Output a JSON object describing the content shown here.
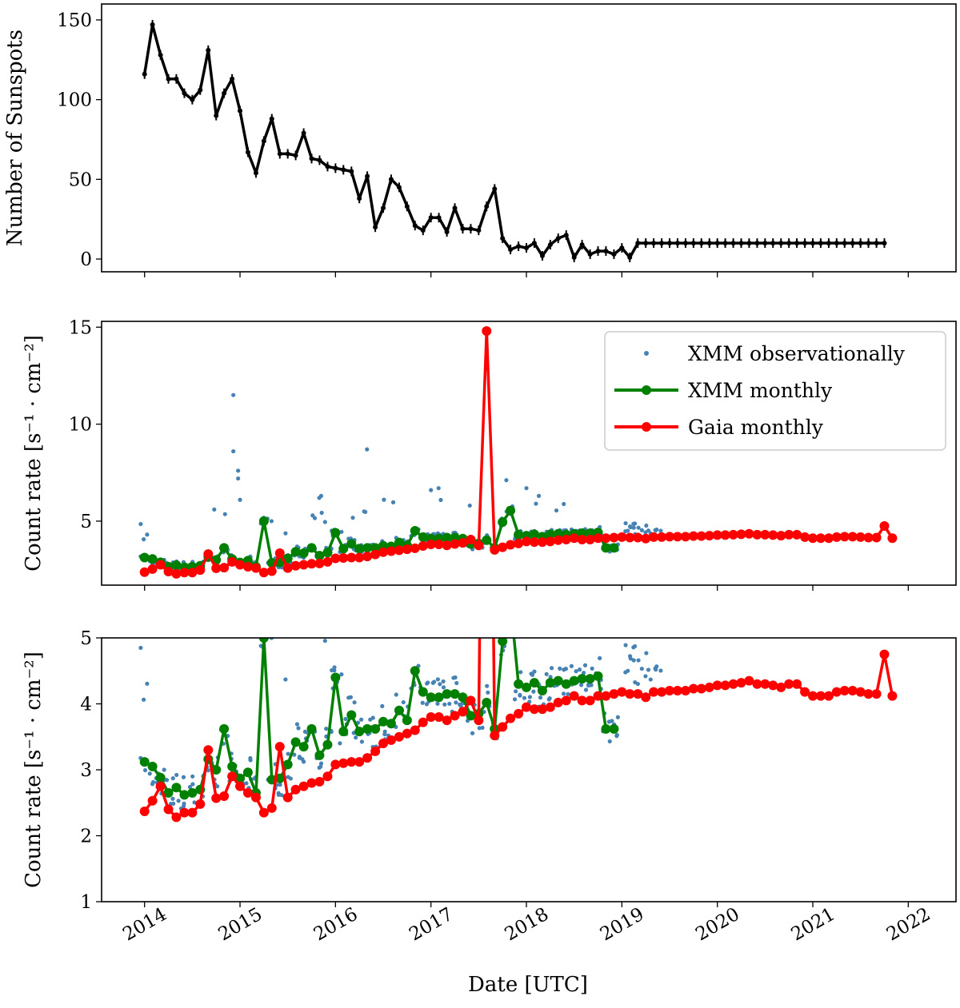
{
  "chart_data": [
    {
      "id": "sunspots",
      "type": "line",
      "ylabel": "Number of Sunspots",
      "ylim": [
        -8,
        160
      ],
      "yticks": [
        0,
        50,
        100,
        150
      ],
      "xlim": [
        2013.55,
        2022.5
      ],
      "series": [
        {
          "name": "Sunspots",
          "color": "#000000",
          "x": [
            2014.0,
            2014.083,
            2014.167,
            2014.25,
            2014.333,
            2014.417,
            2014.5,
            2014.583,
            2014.667,
            2014.75,
            2014.833,
            2014.917,
            2015.0,
            2015.083,
            2015.167,
            2015.25,
            2015.333,
            2015.417,
            2015.5,
            2015.583,
            2015.667,
            2015.75,
            2015.833,
            2015.917,
            2016.0,
            2016.083,
            2016.167,
            2016.25,
            2016.333,
            2016.417,
            2016.5,
            2016.583,
            2016.667,
            2016.75,
            2016.833,
            2016.917,
            2017.0,
            2017.083,
            2017.167,
            2017.25,
            2017.333,
            2017.417,
            2017.5,
            2017.583,
            2017.667,
            2017.75,
            2017.833,
            2017.917,
            2018.0,
            2018.083,
            2018.167,
            2018.25,
            2018.333,
            2018.417,
            2018.5,
            2018.583,
            2018.667,
            2018.75,
            2018.833,
            2018.917,
            2019.0,
            2019.083,
            2019.167,
            2019.25,
            2019.333,
            2019.417,
            2019.5,
            2019.583,
            2019.667,
            2019.75,
            2019.833,
            2019.917,
            2020.0,
            2020.083,
            2020.167,
            2020.25,
            2020.333,
            2020.417,
            2020.5,
            2020.583,
            2020.667,
            2020.75,
            2020.833,
            2020.917,
            2021.0,
            2021.083,
            2021.167,
            2021.25,
            2021.333,
            2021.417,
            2021.5,
            2021.583,
            2021.667,
            2021.75,
            2021.833
          ],
          "y": [
            116,
            147,
            128,
            113,
            113,
            104,
            100,
            106,
            131,
            90,
            104,
            113,
            93,
            67,
            54,
            74,
            88,
            66,
            66,
            65,
            79,
            63,
            62,
            58,
            57,
            56,
            55,
            38,
            52,
            20,
            32,
            50,
            45,
            33,
            21,
            18,
            26,
            26,
            17,
            32,
            19,
            19,
            18,
            33,
            44,
            13,
            6,
            8,
            7,
            10,
            2,
            9,
            13,
            15,
            1,
            9,
            3,
            5,
            5,
            3,
            7,
            1,
            10,
            10,
            10,
            10,
            10,
            10,
            10,
            10,
            10,
            10,
            10,
            10,
            10,
            10,
            10,
            10,
            10,
            10,
            10,
            10,
            10,
            10,
            10,
            10,
            10,
            10,
            10,
            10,
            10,
            10,
            10,
            10,
            10
          ]
        }
      ]
    },
    {
      "id": "count-rate-full",
      "type": "line",
      "ylabel": "Count rate [s⁻¹ · cm⁻²]",
      "ylim": [
        1.7,
        15.3
      ],
      "yticks": [
        5,
        10,
        15
      ],
      "xlim": [
        2013.55,
        2022.5
      ],
      "legend": {
        "position": "top-right",
        "entries": [
          "XMM observationally",
          "XMM monthly",
          "Gaia monthly"
        ]
      }
    },
    {
      "id": "count-rate-zoom",
      "type": "line",
      "ylabel": "Count rate [s⁻¹ · cm⁻²]",
      "ylim": [
        1,
        5
      ],
      "yticks": [
        1,
        2,
        3,
        4,
        5
      ],
      "xlim": [
        2013.55,
        2022.5
      ],
      "xlabel": "Date [UTC]",
      "xticks": [
        2014,
        2015,
        2016,
        2017,
        2018,
        2019,
        2020,
        2021,
        2022
      ]
    }
  ],
  "series": {
    "xmm_monthly": {
      "name": "XMM monthly",
      "color": "#008000",
      "x": [
        2014.0,
        2014.083,
        2014.167,
        2014.25,
        2014.333,
        2014.417,
        2014.5,
        2014.583,
        2014.667,
        2014.75,
        2014.833,
        2014.917,
        2015.0,
        2015.083,
        2015.167,
        2015.25,
        2015.333,
        2015.417,
        2015.5,
        2015.583,
        2015.667,
        2015.75,
        2015.833,
        2015.917,
        2016.0,
        2016.083,
        2016.167,
        2016.25,
        2016.333,
        2016.417,
        2016.5,
        2016.583,
        2016.667,
        2016.75,
        2016.833,
        2016.917,
        2017.0,
        2017.083,
        2017.167,
        2017.25,
        2017.333,
        2017.417,
        2017.5,
        2017.583,
        2017.667,
        2017.75,
        2017.833,
        2017.917,
        2018.0,
        2018.083,
        2018.167,
        2018.25,
        2018.333,
        2018.417,
        2018.5,
        2018.583,
        2018.667,
        2018.75,
        2018.833,
        2018.917
      ],
      "y": [
        3.12,
        3.05,
        2.88,
        2.65,
        2.73,
        2.62,
        2.65,
        2.7,
        3.16,
        3.0,
        3.62,
        3.05,
        2.87,
        2.96,
        2.65,
        5.0,
        2.85,
        2.87,
        3.08,
        3.42,
        3.35,
        3.62,
        3.22,
        3.38,
        4.4,
        3.58,
        3.83,
        3.58,
        3.62,
        3.62,
        3.73,
        3.7,
        3.9,
        3.75,
        4.5,
        4.18,
        4.1,
        4.1,
        4.15,
        4.15,
        4.1,
        3.82,
        3.85,
        4.02,
        3.62,
        4.95,
        5.55,
        4.3,
        4.25,
        4.32,
        4.2,
        4.32,
        4.35,
        4.3,
        4.35,
        4.38,
        4.38,
        4.42,
        3.62,
        3.62
      ]
    },
    "gaia_monthly": {
      "name": "Gaia monthly",
      "color": "#ff0000",
      "x": [
        2014.0,
        2014.083,
        2014.167,
        2014.25,
        2014.333,
        2014.417,
        2014.5,
        2014.583,
        2014.667,
        2014.75,
        2014.833,
        2014.917,
        2015.0,
        2015.083,
        2015.167,
        2015.25,
        2015.333,
        2015.417,
        2015.5,
        2015.583,
        2015.667,
        2015.75,
        2015.833,
        2015.917,
        2016.0,
        2016.083,
        2016.167,
        2016.25,
        2016.333,
        2016.417,
        2016.5,
        2016.583,
        2016.667,
        2016.75,
        2016.833,
        2016.917,
        2017.0,
        2017.083,
        2017.167,
        2017.25,
        2017.333,
        2017.417,
        2017.5,
        2017.583,
        2017.667,
        2017.75,
        2017.833,
        2017.917,
        2018.0,
        2018.083,
        2018.167,
        2018.25,
        2018.333,
        2018.417,
        2018.5,
        2018.583,
        2018.667,
        2018.75,
        2018.833,
        2018.917,
        2019.0,
        2019.083,
        2019.167,
        2019.25,
        2019.333,
        2019.417,
        2019.5,
        2019.583,
        2019.667,
        2019.75,
        2019.833,
        2019.917,
        2020.0,
        2020.083,
        2020.167,
        2020.25,
        2020.333,
        2020.417,
        2020.5,
        2020.583,
        2020.667,
        2020.75,
        2020.833,
        2020.917,
        2021.0,
        2021.083,
        2021.167,
        2021.25,
        2021.333,
        2021.417,
        2021.5,
        2021.583,
        2021.667,
        2021.75,
        2021.833
      ],
      "y": [
        2.37,
        2.53,
        2.75,
        2.4,
        2.28,
        2.35,
        2.35,
        2.48,
        3.3,
        2.57,
        2.6,
        2.9,
        2.75,
        2.65,
        2.58,
        2.35,
        2.42,
        3.35,
        2.58,
        2.7,
        2.75,
        2.8,
        2.82,
        2.9,
        3.08,
        3.1,
        3.12,
        3.12,
        3.18,
        3.28,
        3.4,
        3.45,
        3.5,
        3.55,
        3.6,
        3.72,
        3.8,
        3.8,
        3.75,
        3.82,
        3.88,
        4.05,
        3.75,
        14.8,
        3.52,
        3.65,
        3.78,
        3.85,
        3.95,
        3.92,
        3.92,
        3.95,
        4.02,
        4.05,
        4.12,
        4.05,
        4.05,
        4.12,
        4.12,
        4.15,
        4.18,
        4.15,
        4.15,
        4.1,
        4.18,
        4.18,
        4.2,
        4.2,
        4.2,
        4.23,
        4.23,
        4.25,
        4.28,
        4.28,
        4.3,
        4.32,
        4.35,
        4.3,
        4.3,
        4.28,
        4.25,
        4.3,
        4.3,
        4.18,
        4.12,
        4.12,
        4.12,
        4.18,
        4.2,
        4.2,
        4.18,
        4.15,
        4.15,
        4.75,
        4.12
      ]
    }
  }
}
